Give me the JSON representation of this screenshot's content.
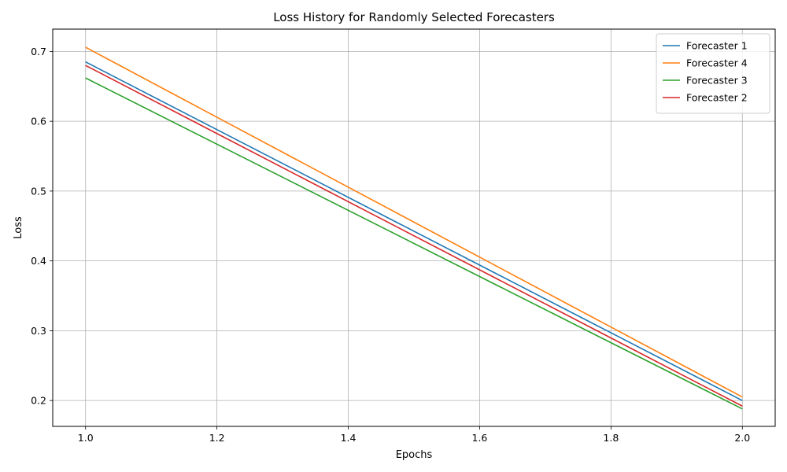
{
  "chart_data": {
    "type": "line",
    "title": "Loss History for Randomly Selected Forecasters",
    "xlabel": "Epochs",
    "ylabel": "Loss",
    "xlim": [
      0.95,
      2.05
    ],
    "ylim": [
      0.163,
      0.732
    ],
    "xticks": [
      1.0,
      1.2,
      1.4,
      1.6,
      1.8,
      2.0
    ],
    "xtick_labels": [
      "1.0",
      "1.2",
      "1.4",
      "1.6",
      "1.8",
      "2.0"
    ],
    "yticks": [
      0.2,
      0.3,
      0.4,
      0.5,
      0.6,
      0.7
    ],
    "ytick_labels": [
      "0.2",
      "0.3",
      "0.4",
      "0.5",
      "0.6",
      "0.7"
    ],
    "grid": true,
    "legend_position": "top-right",
    "x": [
      1,
      2
    ],
    "series": [
      {
        "name": "Forecaster 1",
        "color": "#1f77b4",
        "values": [
          0.685,
          0.2
        ]
      },
      {
        "name": "Forecaster 4",
        "color": "#ff7f0e",
        "values": [
          0.706,
          0.205
        ]
      },
      {
        "name": "Forecaster 3",
        "color": "#2ca02c",
        "values": [
          0.662,
          0.188
        ]
      },
      {
        "name": "Forecaster 2",
        "color": "#d62728",
        "values": [
          0.68,
          0.192
        ]
      }
    ]
  }
}
